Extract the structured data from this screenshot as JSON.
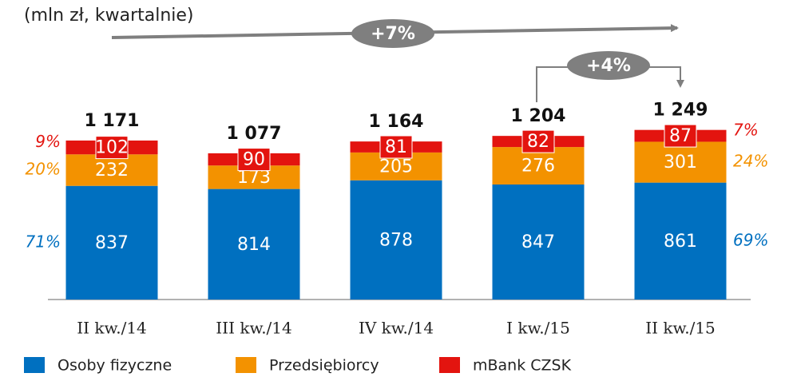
{
  "chart_data": {
    "type": "stacked_bar",
    "subtitle": "(mln zł, kwartalnie)",
    "categories": [
      "II kw./14",
      "III kw./14",
      "IV kw./14",
      "I kw./15",
      "II kw./15"
    ],
    "series": [
      {
        "name": "Osoby fizyczne",
        "color": "#0070c0",
        "values": [
          837,
          814,
          878,
          847,
          861
        ]
      },
      {
        "name": "Przedsiębiorcy",
        "color": "#f39200",
        "values": [
          232,
          173,
          205,
          276,
          301
        ]
      },
      {
        "name": "mBank CZSK",
        "color": "#e3140f",
        "values": [
          102,
          90,
          81,
          82,
          87
        ]
      }
    ],
    "totals": {
      "values": [
        1171,
        1077,
        1164,
        1204,
        1249
      ],
      "value_labels": [
        "1 171",
        "1 077",
        "1 164",
        "1 204",
        "1 249"
      ]
    },
    "left_shares": [
      "71%",
      "20%",
      "9%"
    ],
    "right_shares": [
      "69%",
      "24%",
      "7%"
    ],
    "annotations": [
      "+7%",
      "+4%"
    ]
  }
}
